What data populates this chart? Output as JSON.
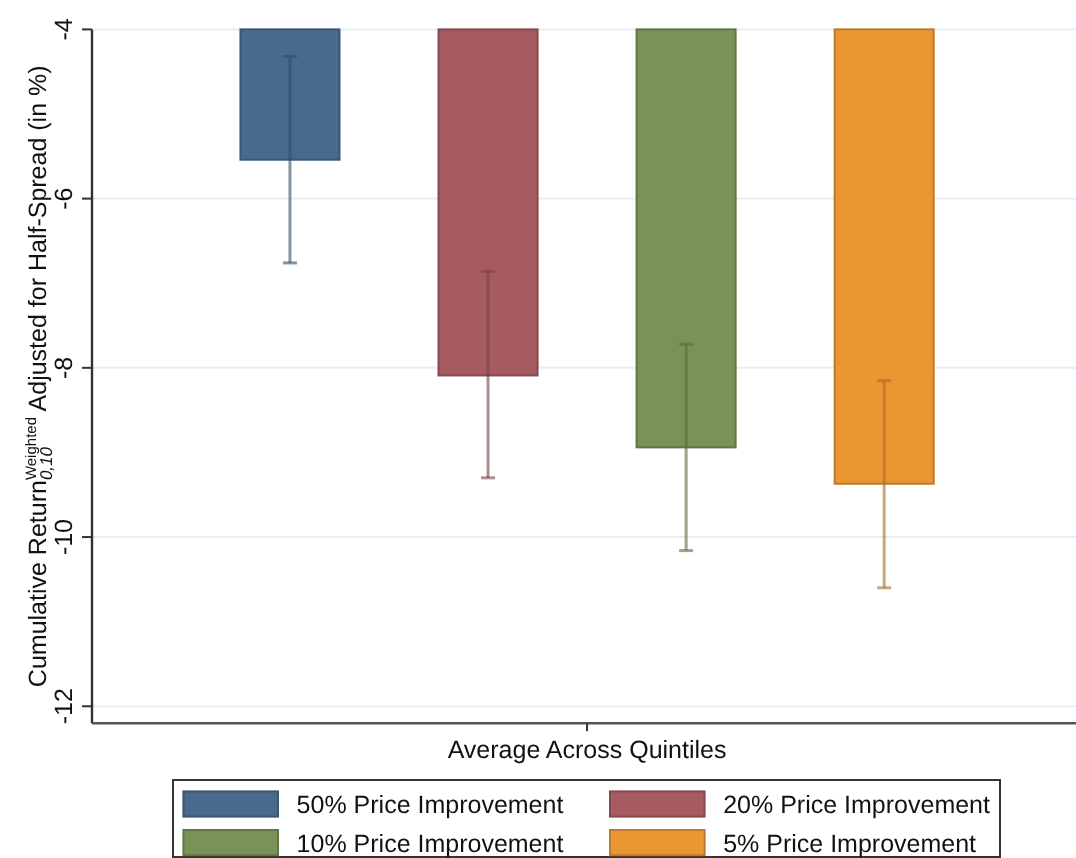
{
  "chart_data": {
    "type": "bar",
    "categories": [
      "Average Across Quintiles"
    ],
    "ylabel": "Cumulative Return$^{Weighted}$$_{0,10}$ Adjusted for Half-Spread (in %)",
    "series": [
      {
        "name": "50% Price Improvement",
        "color": "#486a8c",
        "values": [
          -5.54
        ],
        "errors": [
          [
            -6.76,
            -4.32
          ]
        ]
      },
      {
        "name": "20% Price Improvement",
        "color": "#a65b61",
        "values": [
          -8.09
        ],
        "errors": [
          [
            -9.3,
            -6.86
          ]
        ]
      },
      {
        "name": "10% Price Improvement",
        "color": "#7a9158",
        "values": [
          -8.94
        ],
        "errors": [
          [
            -10.16,
            -7.72
          ]
        ]
      },
      {
        "name": "5% Price Improvement",
        "color": "#ea9633",
        "values": [
          -9.37
        ],
        "errors": [
          [
            -10.6,
            -8.15
          ]
        ]
      }
    ],
    "ylim": [
      -12.2,
      -4
    ],
    "yticks": [
      -4,
      -6,
      -8,
      -10,
      -12
    ],
    "grid": "y",
    "legend": "bottom"
  }
}
